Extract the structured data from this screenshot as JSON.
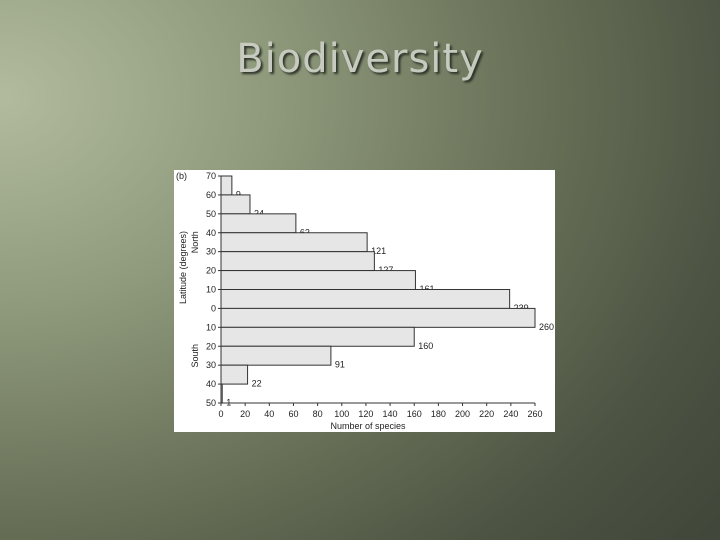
{
  "slide": {
    "title": "Biodiversity"
  },
  "chart_data": {
    "type": "bar",
    "orientation": "horizontal",
    "panel_label": "(b)",
    "xlabel": "Number of species",
    "ylabel": "Latitude (degrees)",
    "north_label": "North",
    "south_label": "South",
    "xlim": [
      0,
      260
    ],
    "x_ticks": [
      "0",
      "20",
      "40",
      "60",
      "80",
      "100",
      "120",
      "140",
      "160",
      "180",
      "200",
      "220",
      "240",
      "260"
    ],
    "latitude_ticks": [
      "70",
      "60",
      "50",
      "40",
      "30",
      "20",
      "10",
      "0",
      "10",
      "20",
      "30",
      "40",
      "50"
    ],
    "bands": [
      {
        "band": "N 70–60",
        "value": 9,
        "label": "9"
      },
      {
        "band": "N 60–50",
        "value": 24,
        "label": "24"
      },
      {
        "band": "N 50–40",
        "value": 62,
        "label": "62"
      },
      {
        "band": "N 40–30",
        "value": 121,
        "label": "121"
      },
      {
        "band": "N 30–20",
        "value": 127,
        "label": "127"
      },
      {
        "band": "N 20–10",
        "value": 161,
        "label": "161"
      },
      {
        "band": "N 10–0",
        "value": 239,
        "label": "239"
      },
      {
        "band": "S 0–10",
        "value": 260,
        "label": "260"
      },
      {
        "band": "S 10–20",
        "value": 160,
        "label": "160"
      },
      {
        "band": "S 20–30",
        "value": 91,
        "label": "91"
      },
      {
        "band": "S 30–40",
        "value": 22,
        "label": "22"
      },
      {
        "band": "S 40–50",
        "value": 1,
        "label": "1"
      }
    ],
    "bar_fill": "#e6e6e6",
    "bar_stroke": "#333333",
    "grid": false,
    "legend": "none"
  }
}
